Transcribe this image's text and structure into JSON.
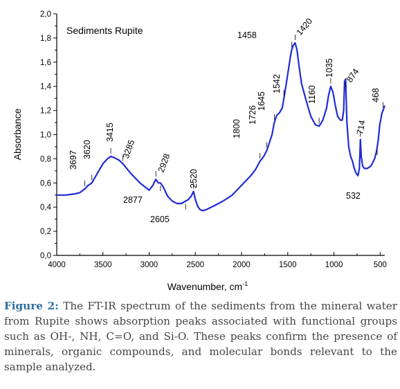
{
  "chart_data": {
    "type": "line",
    "title": "Sediments Rupite",
    "xlabel": "Wavenumber, cm",
    "xlabel_superscript": "-1",
    "ylabel": "Absorbance",
    "xlim": [
      4000,
      450
    ],
    "ylim": [
      0,
      2.0
    ],
    "x_reversed": true,
    "x_ticks": [
      "4000",
      "3500",
      "3000",
      "2500",
      "2000",
      "1500",
      "1000",
      "500"
    ],
    "y_ticks": [
      "0,0",
      "0,2",
      "0,4",
      "0,6",
      "0,8",
      "1,0",
      "1,2",
      "1,4",
      "1,6",
      "1,8",
      "2,0"
    ],
    "grid": false,
    "series": [
      {
        "color": "#1f2bd4",
        "x": [
          4000,
          3900,
          3800,
          3750,
          3697,
          3660,
          3620,
          3560,
          3500,
          3450,
          3415,
          3380,
          3330,
          3285,
          3200,
          3100,
          3000,
          2960,
          2928,
          2900,
          2877,
          2850,
          2800,
          2750,
          2700,
          2650,
          2605,
          2580,
          2545,
          2520,
          2495,
          2470,
          2450,
          2420,
          2380,
          2300,
          2200,
          2100,
          2000,
          1950,
          1900,
          1850,
          1800,
          1760,
          1726,
          1700,
          1670,
          1645,
          1620,
          1590,
          1560,
          1542,
          1520,
          1490,
          1470,
          1458,
          1440,
          1420,
          1400,
          1380,
          1350,
          1300,
          1250,
          1200,
          1160,
          1120,
          1080,
          1060,
          1035,
          1010,
          985,
          960,
          930,
          910,
          895,
          885,
          874,
          860,
          840,
          820,
          800,
          780,
          760,
          740,
          725,
          714,
          705,
          690,
          670,
          640,
          600,
          560,
          540,
          532,
          520,
          505,
          490,
          480,
          468,
          460,
          450
        ],
        "y": [
          0.5,
          0.5,
          0.51,
          0.52,
          0.55,
          0.58,
          0.6,
          0.68,
          0.76,
          0.8,
          0.82,
          0.81,
          0.79,
          0.76,
          0.68,
          0.6,
          0.54,
          0.58,
          0.63,
          0.6,
          0.6,
          0.57,
          0.49,
          0.45,
          0.43,
          0.43,
          0.45,
          0.46,
          0.49,
          0.53,
          0.45,
          0.4,
          0.38,
          0.37,
          0.38,
          0.41,
          0.45,
          0.5,
          0.58,
          0.62,
          0.66,
          0.71,
          0.78,
          0.82,
          0.87,
          0.93,
          1.0,
          1.1,
          1.16,
          1.18,
          1.22,
          1.3,
          1.4,
          1.55,
          1.65,
          1.7,
          1.74,
          1.76,
          1.7,
          1.58,
          1.42,
          1.28,
          1.15,
          1.08,
          1.07,
          1.12,
          1.22,
          1.32,
          1.4,
          1.35,
          1.24,
          1.15,
          1.12,
          1.12,
          1.2,
          1.44,
          1.46,
          1.1,
          0.9,
          0.82,
          0.78,
          0.72,
          0.68,
          0.66,
          0.72,
          0.96,
          0.82,
          0.74,
          0.72,
          0.72,
          0.74,
          0.8,
          0.86,
          0.9,
          0.96,
          1.08,
          1.14,
          1.18,
          1.2,
          1.22,
          1.24
        ]
      }
    ],
    "annotations": [
      "3697",
      "3620",
      "3415",
      "3285",
      "2928",
      "2877",
      "2605",
      "2520",
      "1800",
      "1726",
      "1645",
      "1542",
      "1458",
      "1420",
      "1160",
      "1035",
      "874",
      "714",
      "532",
      "468"
    ]
  },
  "caption": {
    "label": "Figure 2:",
    "text": " The FT-IR spectrum of the sediments from the mineral water from Rupite shows absorption peaks associated with functional groups such as OH-, NH, C=O, and Si-O. These peaks confirm the presence of minerals, organic compounds, and molecular bonds relevant to the sample analyzed."
  }
}
